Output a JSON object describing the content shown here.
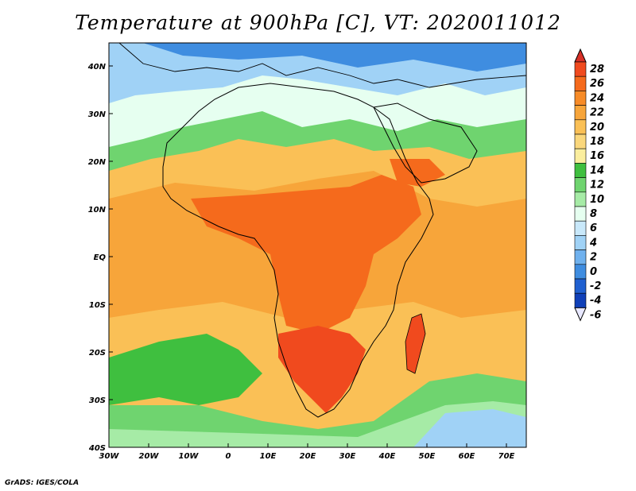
{
  "title": "Temperature at 900hPa [C], VT: 2020011012",
  "credit": "GrADS: IGES/COLA",
  "map": {
    "lat_labels": [
      "40N",
      "30N",
      "20N",
      "10N",
      "EQ",
      "10S",
      "20S",
      "30S",
      "40S"
    ],
    "lon_labels": [
      "30W",
      "20W",
      "10W",
      "0",
      "10E",
      "20E",
      "30E",
      "40E",
      "50E",
      "60E",
      "70E"
    ],
    "lon_range": [
      -30,
      75
    ],
    "lat_range": [
      -40,
      45
    ]
  },
  "colorbar": {
    "labels": [
      "28",
      "26",
      "24",
      "22",
      "20",
      "18",
      "16",
      "14",
      "12",
      "10",
      "8",
      "6",
      "4",
      "2",
      "0",
      "-2",
      "-4",
      "-6"
    ],
    "colors": [
      "#d73027",
      "#f04a1e",
      "#f56a1c",
      "#f78b27",
      "#f7a53a",
      "#fac056",
      "#fad77c",
      "#fbee9e",
      "#3fbf3f",
      "#6fd46f",
      "#a6eba6",
      "#e6fff0",
      "#c8e8fa",
      "#a0d2f6",
      "#6fb1ee",
      "#3f8de0",
      "#2060d0",
      "#1040b8",
      "#10208a"
    ]
  }
}
